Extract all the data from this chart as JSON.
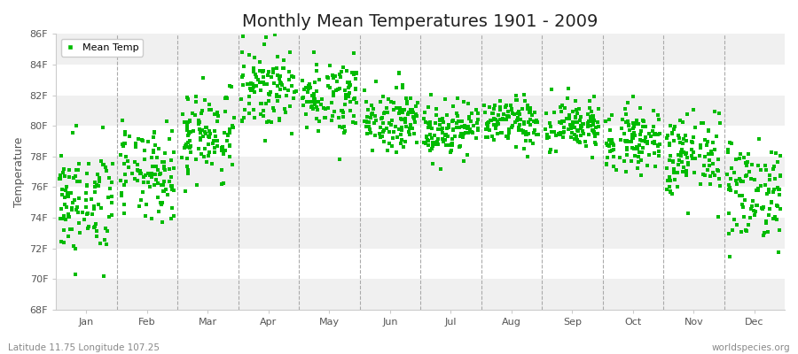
{
  "title": "Monthly Mean Temperatures 1901 - 2009",
  "ylabel": "Temperature",
  "xlabel_labels": [
    "Jan",
    "Feb",
    "Mar",
    "Apr",
    "May",
    "Jun",
    "Jul",
    "Aug",
    "Sep",
    "Oct",
    "Nov",
    "Dec"
  ],
  "ytick_labels": [
    "68F",
    "70F",
    "72F",
    "74F",
    "76F",
    "78F",
    "80F",
    "82F",
    "84F",
    "86F"
  ],
  "ytick_values": [
    68,
    70,
    72,
    74,
    76,
    78,
    80,
    82,
    84,
    86
  ],
  "ylim": [
    68,
    86
  ],
  "dot_color": "#00bb00",
  "bg_color": "#ffffff",
  "plot_bg_color": "#ffffff",
  "stripe_color_a": "#f0f0f0",
  "stripe_color_b": "#ffffff",
  "legend_label": "Mean Temp",
  "footer_left": "Latitude 11.75 Longitude 107.25",
  "footer_right": "worldspecies.org",
  "title_fontsize": 14,
  "label_fontsize": 9,
  "tick_fontsize": 8,
  "footer_fontsize": 7.5,
  "marker_size": 3,
  "years": 109,
  "start_year": 1901,
  "monthly_means": [
    75.0,
    76.8,
    79.5,
    82.5,
    82.0,
    80.5,
    79.8,
    80.2,
    80.0,
    79.2,
    78.0,
    75.8
  ],
  "monthly_stds": [
    1.8,
    1.5,
    1.5,
    1.3,
    1.2,
    1.0,
    0.9,
    0.8,
    0.9,
    1.0,
    1.4,
    1.7
  ],
  "seed": 42
}
